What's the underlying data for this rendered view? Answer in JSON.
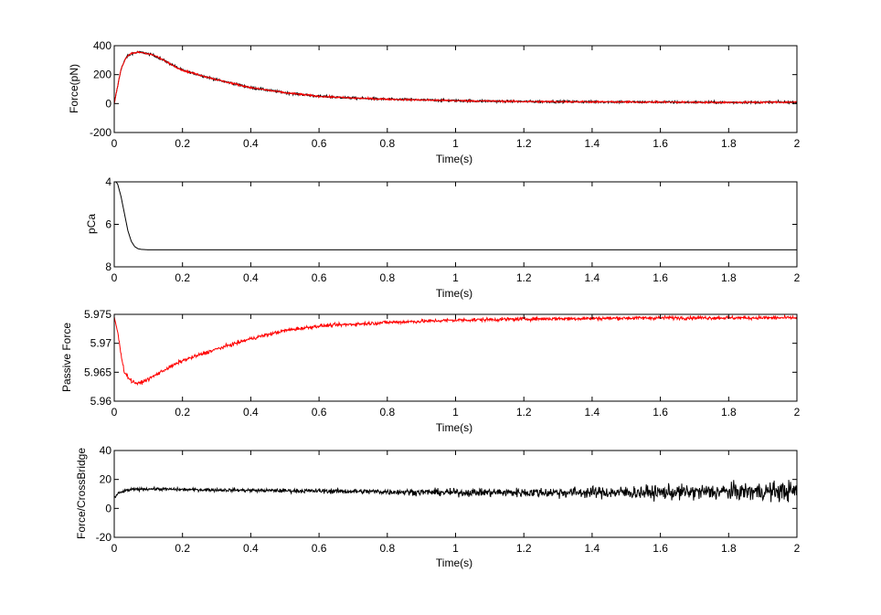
{
  "chart_data": [
    {
      "type": "line",
      "title": "",
      "xlabel": "Time(s)",
      "ylabel": "Force(pN)",
      "xlim": [
        0,
        2
      ],
      "ylim": [
        -200,
        400
      ],
      "y_reversed": false,
      "xticks": [
        "0",
        "0.2",
        "0.4",
        "0.6",
        "0.8",
        "1",
        "1.2",
        "1.4",
        "1.6",
        "1.8",
        "2"
      ],
      "yticks": [
        "-200",
        "0",
        "200",
        "400"
      ],
      "series": [
        {
          "color": "#000000",
          "noise": 8,
          "x": [
            0,
            0.01,
            0.02,
            0.035,
            0.05,
            0.07,
            0.09,
            0.12,
            0.16,
            0.2,
            0.3,
            0.4,
            0.5,
            0.6,
            0.7,
            0.8,
            1.0,
            1.2,
            1.4,
            1.6,
            1.8,
            2.0
          ],
          "y": [
            0,
            120,
            240,
            320,
            345,
            355,
            350,
            330,
            280,
            230,
            165,
            110,
            75,
            50,
            38,
            30,
            20,
            14,
            12,
            10,
            8,
            10
          ]
        },
        {
          "color": "#ff0000",
          "noise": 6,
          "x": [
            0,
            0.01,
            0.02,
            0.035,
            0.05,
            0.07,
            0.09,
            0.12,
            0.16,
            0.2,
            0.3,
            0.4,
            0.5,
            0.6,
            0.7,
            0.8,
            1.0,
            1.2,
            1.4,
            1.6,
            1.8,
            2.0
          ],
          "y": [
            0,
            120,
            240,
            320,
            345,
            355,
            350,
            330,
            280,
            230,
            165,
            110,
            75,
            50,
            38,
            30,
            20,
            14,
            12,
            10,
            8,
            10
          ]
        }
      ]
    },
    {
      "type": "line",
      "title": "",
      "xlabel": "Time(s)",
      "ylabel": "pCa",
      "xlim": [
        0,
        2
      ],
      "ylim": [
        4,
        8
      ],
      "y_reversed": true,
      "xticks": [
        "0",
        "0.2",
        "0.4",
        "0.6",
        "0.8",
        "1",
        "1.2",
        "1.4",
        "1.6",
        "1.8",
        "2"
      ],
      "yticks": [
        "4",
        "6",
        "8"
      ],
      "series": [
        {
          "color": "#000000",
          "noise": 0,
          "x": [
            0,
            0.005,
            0.01,
            0.02,
            0.03,
            0.04,
            0.05,
            0.06,
            0.07,
            0.08,
            0.1,
            2.0
          ],
          "y": [
            4.0,
            4.0,
            4.1,
            4.7,
            5.5,
            6.3,
            6.8,
            7.05,
            7.15,
            7.18,
            7.2,
            7.2
          ]
        }
      ]
    },
    {
      "type": "line",
      "title": "",
      "xlabel": "Time(s)",
      "ylabel": "Passive Force",
      "xlim": [
        0,
        2
      ],
      "ylim": [
        5.96,
        5.975
      ],
      "y_reversed": false,
      "xticks": [
        "0",
        "0.2",
        "0.4",
        "0.6",
        "0.8",
        "1",
        "1.2",
        "1.4",
        "1.6",
        "1.8",
        "2"
      ],
      "yticks": [
        "5.96",
        "5.965",
        "5.97",
        "5.975"
      ],
      "series": [
        {
          "color": "#ff0000",
          "noise": 0.0003,
          "x": [
            0,
            0.01,
            0.02,
            0.03,
            0.05,
            0.07,
            0.1,
            0.15,
            0.2,
            0.3,
            0.4,
            0.5,
            0.6,
            0.7,
            0.8,
            1.0,
            1.2,
            1.4,
            1.6,
            1.8,
            2.0
          ],
          "y": [
            5.9745,
            5.972,
            5.968,
            5.965,
            5.9635,
            5.963,
            5.9638,
            5.9655,
            5.967,
            5.969,
            5.9708,
            5.9722,
            5.973,
            5.9733,
            5.9736,
            5.974,
            5.9742,
            5.9743,
            5.9744,
            5.9744,
            5.9744
          ]
        }
      ]
    },
    {
      "type": "line",
      "title": "",
      "xlabel": "Time(s)",
      "ylabel": "Force/CrossBridge",
      "xlim": [
        0,
        2
      ],
      "ylim": [
        -20,
        40
      ],
      "y_reversed": false,
      "xticks": [
        "0",
        "0.2",
        "0.4",
        "0.6",
        "0.8",
        "1",
        "1.2",
        "1.4",
        "1.6",
        "1.8",
        "2"
      ],
      "yticks": [
        "-20",
        "0",
        "20",
        "40"
      ],
      "series": [
        {
          "color": "#000000",
          "noise": 1,
          "noise_growth": 6,
          "x": [
            0,
            0.01,
            0.03,
            0.05,
            0.1,
            0.2,
            0.4,
            0.6,
            0.8,
            1.0,
            1.2,
            1.4,
            1.6,
            1.8,
            2.0
          ],
          "y": [
            7,
            10,
            12,
            13,
            13.5,
            13,
            12.5,
            12,
            11.5,
            11,
            11,
            11,
            11,
            11.5,
            12
          ]
        }
      ]
    }
  ]
}
